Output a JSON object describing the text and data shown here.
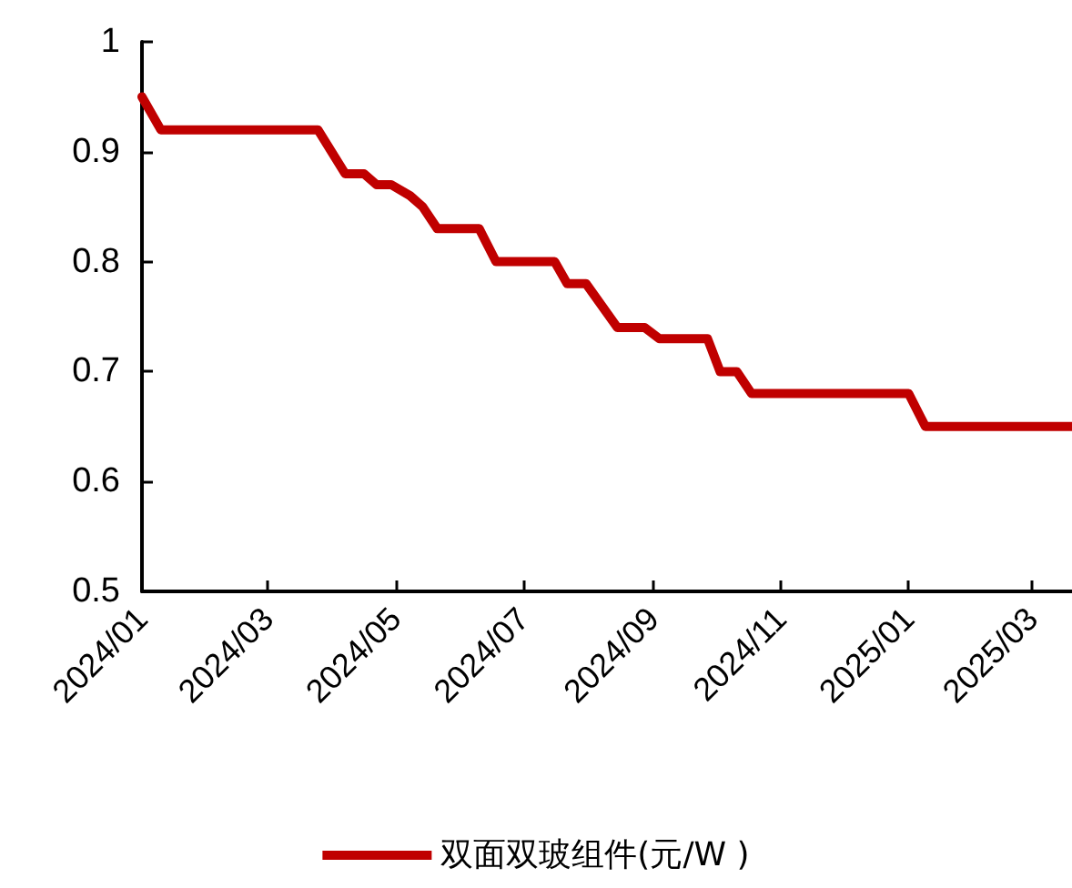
{
  "chart_data": {
    "type": "line",
    "x": [
      "2024-01-01",
      "2024-01-10",
      "2024-03-25",
      "2024-04-07",
      "2024-04-16",
      "2024-04-22",
      "2024-04-29",
      "2024-05-08",
      "2024-05-14",
      "2024-05-21",
      "2024-06-10",
      "2024-06-18",
      "2024-07-16",
      "2024-07-22",
      "2024-07-31",
      "2024-08-15",
      "2024-08-28",
      "2024-09-04",
      "2024-09-27",
      "2024-10-03",
      "2024-10-11",
      "2024-10-18",
      "2025-01-01",
      "2025-01-09",
      "2025-03-20"
    ],
    "series": [
      {
        "name": "双面双玻组件(元/W )",
        "color": "#c00000",
        "values": [
          0.95,
          0.92,
          0.92,
          0.88,
          0.88,
          0.87,
          0.87,
          0.86,
          0.85,
          0.83,
          0.83,
          0.8,
          0.8,
          0.78,
          0.78,
          0.74,
          0.74,
          0.73,
          0.73,
          0.7,
          0.7,
          0.68,
          0.68,
          0.65,
          0.65
        ]
      }
    ],
    "xlim": [
      "2024-01-01",
      "2025-03-20"
    ],
    "xticks": [
      {
        "value": "2024-01-01",
        "label": "2024/01"
      },
      {
        "value": "2024-03-01",
        "label": "2024/03"
      },
      {
        "value": "2024-05-01",
        "label": "2024/05"
      },
      {
        "value": "2024-07-01",
        "label": "2024/07"
      },
      {
        "value": "2024-09-01",
        "label": "2024/09"
      },
      {
        "value": "2024-11-01",
        "label": "2024/11"
      },
      {
        "value": "2025-01-01",
        "label": "2025/01"
      },
      {
        "value": "2025-03-01",
        "label": "2025/03"
      }
    ],
    "ylim": [
      0.5,
      1
    ],
    "yticks": [
      0.5,
      0.6,
      0.7,
      0.8,
      0.9,
      1
    ],
    "grid": false,
    "legend": "bottom",
    "marker": "none",
    "line_style": "solid"
  }
}
